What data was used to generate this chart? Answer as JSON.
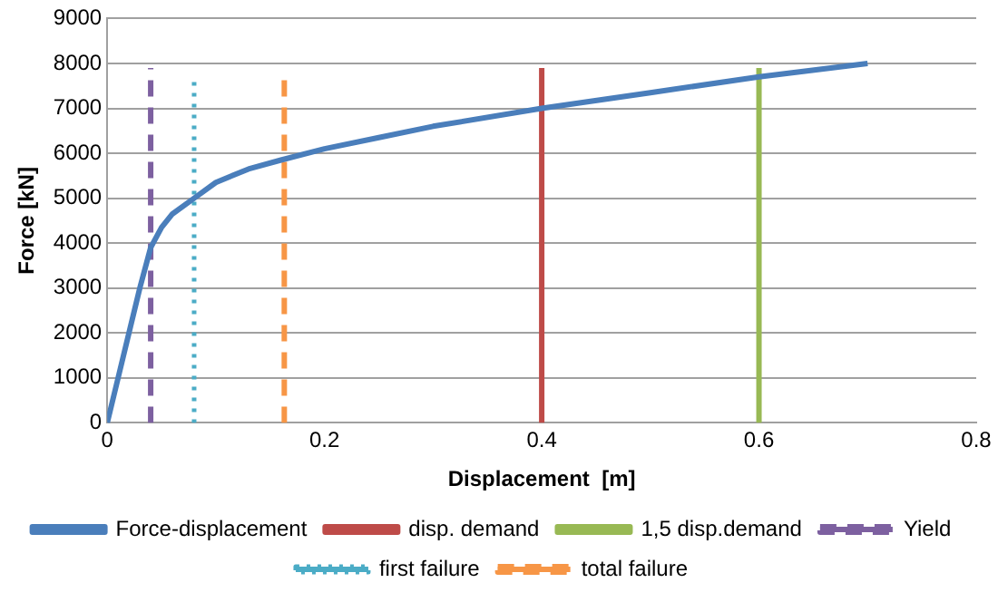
{
  "chart_data": {
    "type": "line",
    "xlabel": "Displacement  [m]",
    "ylabel": "Force [kN]",
    "xlim": [
      0,
      0.8
    ],
    "xticks": [
      0,
      0.2,
      0.4,
      0.6,
      0.8
    ],
    "ylim": [
      0,
      9000
    ],
    "yticks": [
      0,
      1000,
      2000,
      3000,
      4000,
      5000,
      6000,
      7000,
      8000,
      9000
    ],
    "grid": "y",
    "legend": "bottom",
    "marker": "none",
    "series": [
      {
        "name": "Force-displacement",
        "color": "#4a7ebb",
        "line_style": "solid",
        "x": [
          0,
          0.01,
          0.02,
          0.03,
          0.04,
          0.05,
          0.06,
          0.08,
          0.1,
          0.13,
          0.16,
          0.2,
          0.25,
          0.3,
          0.4,
          0.5,
          0.6,
          0.7
        ],
        "values": [
          0,
          1000,
          2000,
          3000,
          3900,
          4350,
          4650,
          5000,
          5350,
          5650,
          5850,
          6100,
          6350,
          6600,
          7000,
          7350,
          7700,
          8000
        ]
      },
      {
        "name": "disp. demand",
        "color": "#be4b48",
        "line_style": "solid",
        "x": [
          0.4,
          0.4
        ],
        "values": [
          0,
          7900
        ]
      },
      {
        "name": "1,5 disp.demand",
        "color": "#98b954",
        "line_style": "solid",
        "x": [
          0.6,
          0.6
        ],
        "values": [
          0,
          7900
        ]
      },
      {
        "name": "Yield",
        "color": "#7d60a0",
        "line_style": "dashed",
        "x": [
          0.04,
          0.04
        ],
        "values": [
          0,
          7900
        ]
      },
      {
        "name": "first failure",
        "color": "#4bacc6",
        "line_style": "dotted",
        "x": [
          0.08,
          0.08
        ],
        "values": [
          0,
          7700
        ]
      },
      {
        "name": "total failure",
        "color": "#f79646",
        "line_style": "dashed",
        "x": [
          0.163,
          0.163
        ],
        "values": [
          0,
          7700
        ]
      }
    ]
  }
}
